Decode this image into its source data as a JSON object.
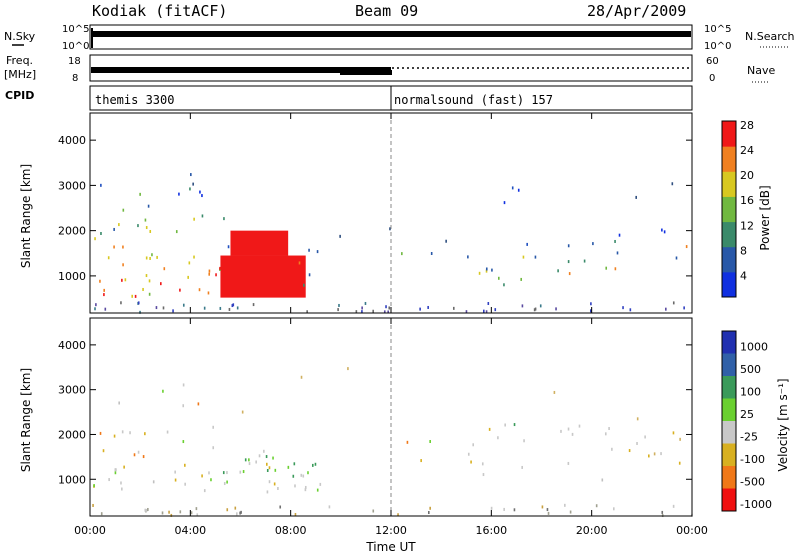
{
  "header": {
    "station": "Kodiak (fitACF)",
    "beam": "Beam 09",
    "date": "28/Apr/2009"
  },
  "strips": {
    "nsky_label": "N.Sky",
    "nsearch_label": "N.Search",
    "freq_label": "Freq.",
    "freq_unit": "[MHz]",
    "nave_label": "Nave",
    "cpid_label": "CPID",
    "nsky_ticks": [
      "10^5",
      "10^0"
    ],
    "nsearch_ticks": [
      "10^5",
      "10^0"
    ],
    "freq_ticks": [
      "18",
      "8"
    ],
    "nave_ticks": [
      "60",
      "0"
    ],
    "cpid_segments": [
      {
        "label": "themis 3300",
        "start_hour": 0,
        "end_hour": 12
      },
      {
        "label": "normalsound (fast) 157",
        "start_hour": 12,
        "end_hour": 24
      }
    ]
  },
  "chart_data": [
    {
      "type": "heatmap",
      "panel": "power",
      "ylabel": "Slant Range [km]",
      "xlabel": "",
      "xlim_hours": [
        0,
        24
      ],
      "ylim": [
        180,
        4600
      ],
      "yticks": [
        1000,
        2000,
        3000,
        4000
      ],
      "colorbar_label": "Power [dB]",
      "colorbar_ticks": [
        "4",
        "8",
        "12",
        "16",
        "20",
        "24",
        "28"
      ],
      "colorbar_colors": [
        "#1030e0",
        "#2858a8",
        "#3a8a6a",
        "#70b840",
        "#d8c820",
        "#f08020",
        "#f01818"
      ]
    },
    {
      "type": "heatmap",
      "panel": "velocity",
      "ylabel": "Slant Range [km]",
      "xlabel": "Time UT",
      "xlim_hours": [
        0,
        24
      ],
      "ylim": [
        180,
        4600
      ],
      "yticks": [
        1000,
        2000,
        3000,
        4000
      ],
      "xticks": [
        "00:00",
        "04:00",
        "08:00",
        "12:00",
        "16:00",
        "20:00",
        "00:00"
      ],
      "colorbar_label": "Velocity [m s⁻¹]",
      "colorbar_ticks": [
        "1000",
        "500",
        "100",
        "25",
        "-25",
        "-100",
        "-500",
        "-1000"
      ],
      "colorbar_colors": [
        "#2030b0",
        "#3060a8",
        "#3a9a5a",
        "#6ad030",
        "#c8c8c8",
        "#d8b020",
        "#f07818",
        "#f01010"
      ]
    }
  ]
}
